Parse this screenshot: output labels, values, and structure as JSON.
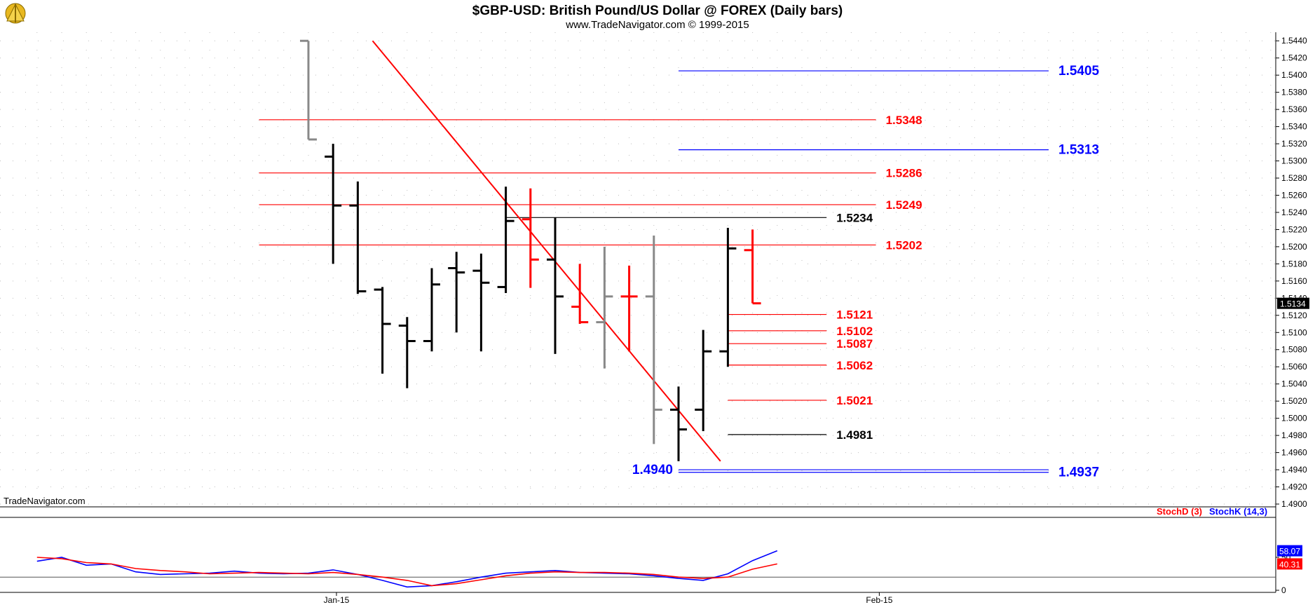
{
  "header": {
    "title": "$GBP-USD:  British Pound/US Dollar @ FOREX  (Daily bars)",
    "subtitle": "www.TradeNavigator.com © 1999-2015",
    "watermark": "TradeNavigator.com",
    "logo_icon": "sextant-logo-icon"
  },
  "colors": {
    "up_bar": "#000000",
    "down_bar": "#ff0000",
    "flat_bar": "#888888",
    "red_level": "#ff0000",
    "blue_level": "#0000ff",
    "black_level": "#000000",
    "stoch_d": "#ff0000",
    "stoch_k": "#0000ff",
    "background": "#ffffff",
    "grid": "#bfbfbf"
  },
  "chart_data": [
    {
      "type": "ohlc",
      "ylim": [
        1.49,
        1.545
      ],
      "yticks": [
        "1.5440",
        "1.5420",
        "1.5400",
        "1.5380",
        "1.5360",
        "1.5340",
        "1.5320",
        "1.5300",
        "1.5280",
        "1.5260",
        "1.5240",
        "1.5220",
        "1.5200",
        "1.5180",
        "1.5160",
        "1.5140",
        "1.5120",
        "1.5100",
        "1.5080",
        "1.5060",
        "1.5040",
        "1.5020",
        "1.5000",
        "1.4980",
        "1.4960",
        "1.4940",
        "1.4920",
        "1.4900"
      ],
      "last_price": "1.5134",
      "xtick_labels": [
        {
          "label": "Jan-15",
          "bar": 0
        },
        {
          "label": "Feb-15",
          "bar": 22
        }
      ],
      "bars": [
        {
          "o": 1.544,
          "h": 1.544,
          "l": 1.5325,
          "c": 1.5325,
          "color": "gray"
        },
        {
          "o": 1.5305,
          "h": 1.532,
          "l": 1.518,
          "c": 1.5248,
          "color": "black"
        },
        {
          "o": 1.5248,
          "h": 1.5276,
          "l": 1.5145,
          "c": 1.5148,
          "color": "black"
        },
        {
          "o": 1.515,
          "h": 1.5153,
          "l": 1.5052,
          "c": 1.511,
          "color": "black"
        },
        {
          "o": 1.5108,
          "h": 1.5118,
          "l": 1.5035,
          "c": 1.509,
          "color": "black"
        },
        {
          "o": 1.509,
          "h": 1.5175,
          "l": 1.5078,
          "c": 1.5156,
          "color": "black"
        },
        {
          "o": 1.5175,
          "h": 1.5194,
          "l": 1.51,
          "c": 1.517,
          "color": "black"
        },
        {
          "o": 1.5172,
          "h": 1.5192,
          "l": 1.5078,
          "c": 1.5158,
          "color": "black"
        },
        {
          "o": 1.5153,
          "h": 1.527,
          "l": 1.5146,
          "c": 1.523,
          "color": "black"
        },
        {
          "o": 1.5232,
          "h": 1.5268,
          "l": 1.5152,
          "c": 1.5185,
          "color": "red"
        },
        {
          "o": 1.5185,
          "h": 1.5234,
          "l": 1.5075,
          "c": 1.5142,
          "color": "black"
        },
        {
          "o": 1.513,
          "h": 1.518,
          "l": 1.511,
          "c": 1.5112,
          "color": "red"
        },
        {
          "o": 1.5112,
          "h": 1.52,
          "l": 1.5058,
          "c": 1.5142,
          "color": "gray"
        },
        {
          "o": 1.5142,
          "h": 1.5178,
          "l": 1.5078,
          "c": 1.5142,
          "color": "red"
        },
        {
          "o": 1.5142,
          "h": 1.5213,
          "l": 1.497,
          "c": 1.501,
          "color": "gray"
        },
        {
          "o": 1.501,
          "h": 1.5037,
          "l": 1.495,
          "c": 1.4987,
          "color": "black"
        },
        {
          "o": 1.501,
          "h": 1.5103,
          "l": 1.4985,
          "c": 1.5078,
          "color": "black"
        },
        {
          "o": 1.5078,
          "h": 1.5222,
          "l": 1.506,
          "c": 1.5198,
          "color": "black"
        },
        {
          "o": 1.5196,
          "h": 1.522,
          "l": 1.5134,
          "c": 1.5134,
          "color": "red"
        }
      ],
      "levels": [
        {
          "value": 1.5405,
          "label": "1.5405",
          "color": "blue",
          "from_bar": 15,
          "to_bar": 30
        },
        {
          "value": 1.5348,
          "label": "1.5348",
          "color": "red",
          "from_bar": -2,
          "to_bar": 23
        },
        {
          "value": 1.5313,
          "label": "1.5313",
          "color": "blue",
          "from_bar": 15,
          "to_bar": 30
        },
        {
          "value": 1.5286,
          "label": "1.5286",
          "color": "red",
          "from_bar": -2,
          "to_bar": 23
        },
        {
          "value": 1.5249,
          "label": "1.5249",
          "color": "red",
          "from_bar": -2,
          "to_bar": 23
        },
        {
          "value": 1.5234,
          "label": "1.5234",
          "color": "black",
          "from_bar": 8,
          "to_bar": 21
        },
        {
          "value": 1.5202,
          "label": "1.5202",
          "color": "red",
          "from_bar": -2,
          "to_bar": 23
        },
        {
          "value": 1.5121,
          "label": "1.5121",
          "color": "red",
          "from_bar": 17,
          "to_bar": 21
        },
        {
          "value": 1.5102,
          "label": "1.5102",
          "color": "red",
          "from_bar": 17,
          "to_bar": 21
        },
        {
          "value": 1.5087,
          "label": "1.5087",
          "color": "red",
          "from_bar": 17,
          "to_bar": 21
        },
        {
          "value": 1.5062,
          "label": "1.5062",
          "color": "red",
          "from_bar": 17,
          "to_bar": 21
        },
        {
          "value": 1.5021,
          "label": "1.5021",
          "color": "red",
          "from_bar": 17,
          "to_bar": 21
        },
        {
          "value": 1.4981,
          "label": "1.4981",
          "color": "black",
          "from_bar": 17,
          "to_bar": 21
        },
        {
          "value": 1.494,
          "label": "1.4940",
          "color": "blue",
          "from_bar": 15,
          "to_bar": 30,
          "label_left": true
        },
        {
          "value": 1.4937,
          "label": "1.4937",
          "color": "blue",
          "from_bar": 15,
          "to_bar": 30
        }
      ],
      "trendline": {
        "from": {
          "bar": 2.6,
          "value": 1.544
        },
        "to": {
          "bar": 16.7,
          "value": 1.495
        },
        "color": "red"
      }
    },
    {
      "type": "line",
      "ylim": [
        0,
        100
      ],
      "yticks": [
        "50",
        "0"
      ],
      "level": 20,
      "legend": [
        {
          "name": "StochD (3)",
          "color": "red"
        },
        {
          "name": "StochK (14,3)",
          "color": "blue"
        }
      ],
      "last_values": {
        "k": "58.07",
        "d": "40.31"
      },
      "x": [
        -11,
        -10,
        -9,
        -8,
        -7,
        -6,
        -5,
        -4,
        -3,
        -2,
        -1,
        0,
        1,
        2,
        3,
        4,
        5,
        6,
        7,
        8,
        9,
        10,
        11,
        12,
        13,
        14,
        15,
        16,
        17,
        18,
        19
      ],
      "series": [
        {
          "name": "StochK (14,3)",
          "values": [
            44,
            50,
            38,
            40,
            28,
            24,
            25,
            26,
            29,
            26,
            25,
            26,
            31,
            24,
            15,
            5,
            7,
            13,
            20,
            26,
            28,
            30,
            27,
            26,
            25,
            22,
            18,
            15,
            25,
            45,
            60
          ]
        },
        {
          "name": "StochD (3)",
          "values": [
            50,
            48,
            42,
            40,
            33,
            30,
            28,
            25,
            26,
            27,
            26,
            25,
            27,
            24,
            20,
            15,
            7,
            10,
            16,
            22,
            26,
            28,
            27,
            27,
            26,
            24,
            20,
            18,
            20,
            32,
            40
          ]
        }
      ]
    }
  ]
}
